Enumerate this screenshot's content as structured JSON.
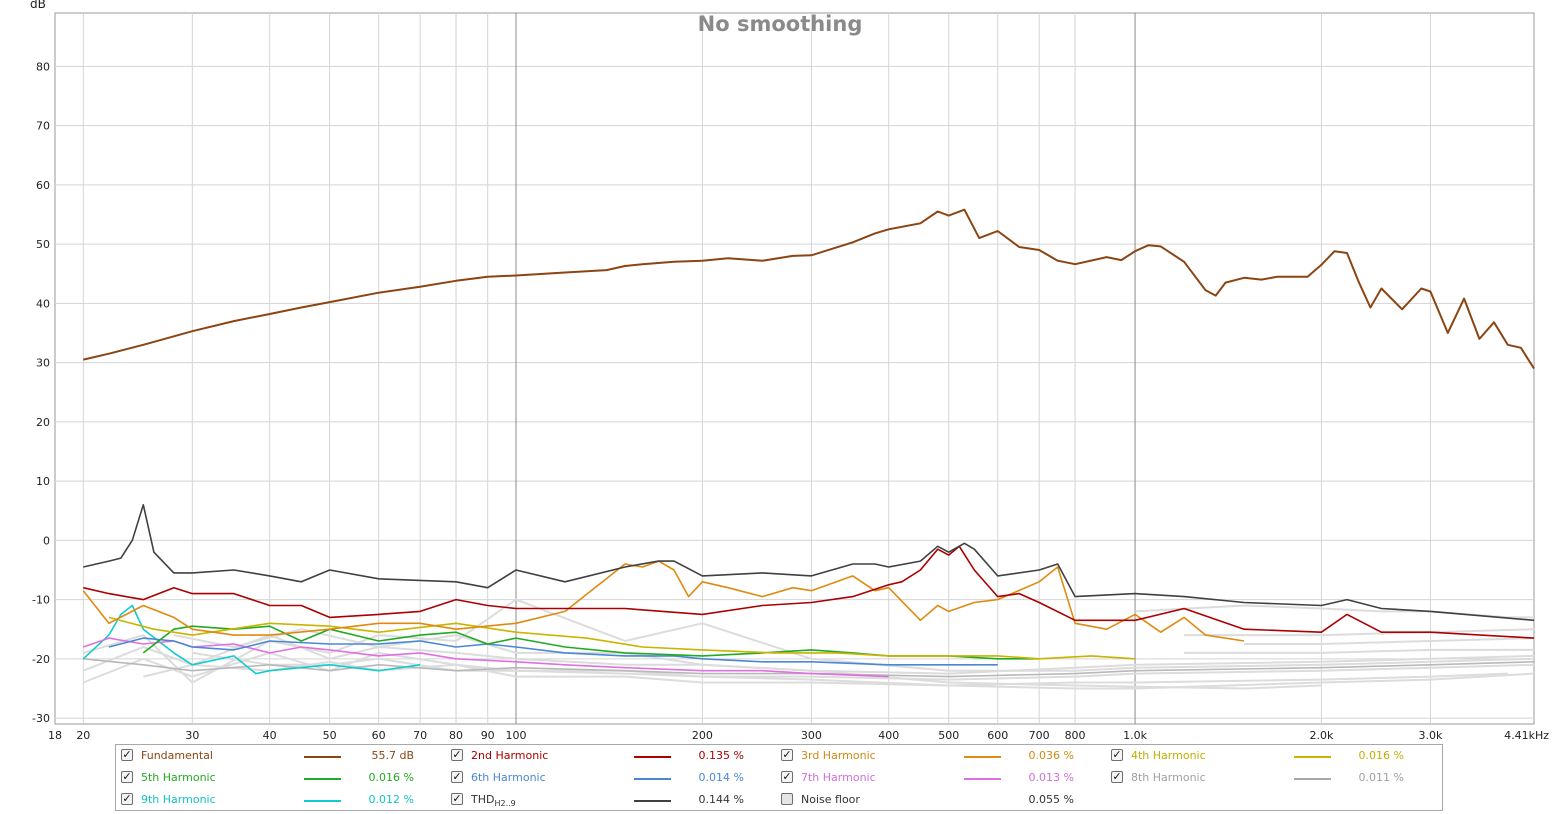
{
  "chart_data": {
    "type": "line",
    "title": "No smoothing",
    "ylabel": "dB",
    "xlabel": "",
    "x_scale": "log",
    "xlim": [
      18,
      4410
    ],
    "ylim": [
      -31,
      89
    ],
    "grid": true,
    "y_ticks": [
      "80",
      "70",
      "60",
      "50",
      "40",
      "30",
      "20",
      "10",
      "0",
      "-10",
      "-20",
      "-30"
    ],
    "y_tick_values": [
      80,
      70,
      60,
      50,
      40,
      30,
      20,
      10,
      0,
      -10,
      -20,
      -30
    ],
    "x_ticks": [
      "18",
      "20",
      "30",
      "40",
      "50",
      "60",
      "70",
      "80",
      "90",
      "100",
      "200",
      "300",
      "400",
      "500",
      "600",
      "700",
      "800",
      "1.0k",
      "2.0k",
      "3.0k",
      "4.41kHz"
    ],
    "x_tick_values": [
      18,
      20,
      30,
      40,
      50,
      60,
      70,
      80,
      90,
      100,
      200,
      300,
      400,
      500,
      600,
      700,
      800,
      1000,
      2000,
      3000,
      4410
    ],
    "series": [
      {
        "name": "Fundamental",
        "color": "#8b4513",
        "x": [
          20,
          22,
          25,
          30,
          35,
          40,
          45,
          50,
          60,
          70,
          80,
          90,
          100,
          120,
          140,
          150,
          160,
          180,
          200,
          220,
          250,
          280,
          300,
          350,
          380,
          400,
          450,
          480,
          500,
          530,
          560,
          600,
          650,
          700,
          750,
          800,
          900,
          950,
          1000,
          1050,
          1100,
          1200,
          1300,
          1350,
          1400,
          1500,
          1600,
          1700,
          1800,
          1900,
          2000,
          2100,
          2200,
          2300,
          2400,
          2500,
          2700,
          2900,
          3000,
          3200,
          3400,
          3600,
          3800,
          4000,
          4200,
          4410
        ],
        "y": [
          30.5,
          31.5,
          33.0,
          35.3,
          37.0,
          38.2,
          39.3,
          40.2,
          41.8,
          42.8,
          43.8,
          44.5,
          44.7,
          45.2,
          45.6,
          46.3,
          46.6,
          47.0,
          47.2,
          47.6,
          47.2,
          48.0,
          48.1,
          50.3,
          51.8,
          52.5,
          53.5,
          55.5,
          54.8,
          55.8,
          51.0,
          52.2,
          49.5,
          49.0,
          47.2,
          46.6,
          47.8,
          47.3,
          48.8,
          49.8,
          49.6,
          47.0,
          42.2,
          41.3,
          43.5,
          44.3,
          44.0,
          44.5,
          44.5,
          44.5,
          46.5,
          48.8,
          48.5,
          43.5,
          39.3,
          42.5,
          39.0,
          42.5,
          42.0,
          35.0,
          40.8,
          34.0,
          36.8,
          33.0,
          32.5,
          29.0
        ]
      },
      {
        "name": "2nd Harmonic",
        "color": "#aa0000",
        "x": [
          20,
          22,
          25,
          28,
          30,
          35,
          40,
          45,
          50,
          60,
          70,
          80,
          90,
          100,
          120,
          150,
          200,
          250,
          300,
          350,
          400,
          420,
          450,
          480,
          500,
          520,
          550,
          600,
          650,
          700,
          800,
          1000,
          1200,
          1500,
          2000,
          2200,
          2500,
          3000,
          4410
        ],
        "y": [
          -8.0,
          -9.0,
          -10.0,
          -8.0,
          -9.0,
          -9.0,
          -11.0,
          -11.0,
          -13.0,
          -12.5,
          -12.0,
          -10.0,
          -11.0,
          -11.5,
          -11.5,
          -11.5,
          -12.5,
          -11.0,
          -10.5,
          -9.5,
          -7.5,
          -7.0,
          -5.0,
          -1.5,
          -2.5,
          -1.0,
          -5.0,
          -9.5,
          -9.0,
          -10.5,
          -13.5,
          -13.5,
          -11.5,
          -15.0,
          -15.5,
          -12.5,
          -15.5,
          -15.5,
          -16.5
        ]
      },
      {
        "name": "3rd Harmonic",
        "color": "#e08a10",
        "x": [
          20,
          22,
          25,
          28,
          30,
          35,
          40,
          50,
          60,
          70,
          80,
          100,
          120,
          150,
          160,
          170,
          180,
          190,
          200,
          220,
          250,
          280,
          300,
          350,
          380,
          400,
          450,
          480,
          500,
          550,
          600,
          700,
          750,
          800,
          900,
          1000,
          1100,
          1200,
          1300,
          1500
        ],
        "y": [
          -8.5,
          -14.0,
          -11.0,
          -13.0,
          -15.0,
          -16.0,
          -16.0,
          -15.0,
          -14.0,
          -14.0,
          -15.0,
          -14.0,
          -12.0,
          -4.0,
          -4.5,
          -3.5,
          -5.0,
          -9.5,
          -7.0,
          -8.0,
          -9.5,
          -8.0,
          -8.5,
          -6.0,
          -8.5,
          -8.0,
          -13.5,
          -11.0,
          -12.0,
          -10.5,
          -10.0,
          -7.0,
          -4.5,
          -14.0,
          -15.0,
          -12.5,
          -15.5,
          -13.0,
          -16.0,
          -17.0
        ]
      },
      {
        "name": "4th Harmonic",
        "color": "#c9b400",
        "x": [
          22,
          26,
          30,
          40,
          50,
          60,
          80,
          100,
          130,
          160,
          200,
          260,
          330,
          400,
          500,
          600,
          700,
          850,
          1000
        ],
        "y": [
          -13.0,
          -15.0,
          -16.0,
          -14.0,
          -14.5,
          -15.5,
          -14.0,
          -15.5,
          -16.5,
          -18.0,
          -18.5,
          -19.0,
          -19.0,
          -19.5,
          -19.5,
          -19.5,
          -20.0,
          -19.5,
          -20.0
        ]
      },
      {
        "name": "5th Harmonic",
        "color": "#22aa22",
        "x": [
          25,
          28,
          30,
          35,
          40,
          45,
          50,
          60,
          70,
          80,
          90,
          100,
          120,
          150,
          200,
          250,
          300,
          350,
          400,
          500,
          600,
          700
        ],
        "y": [
          -19.0,
          -15.0,
          -14.5,
          -15.0,
          -14.5,
          -17.0,
          -15.0,
          -17.0,
          -16.0,
          -15.5,
          -17.5,
          -16.5,
          -18.0,
          -19.0,
          -19.5,
          -19.0,
          -18.5,
          -19.0,
          -19.5,
          -19.5,
          -20.0,
          -20.0
        ]
      },
      {
        "name": "6th Harmonic",
        "color": "#4a88d4",
        "x": [
          22,
          25,
          28,
          30,
          35,
          40,
          50,
          60,
          70,
          80,
          90,
          100,
          120,
          150,
          180,
          200,
          250,
          300,
          400,
          500,
          600
        ],
        "y": [
          -18.0,
          -16.5,
          -17.0,
          -18.0,
          -18.5,
          -17.0,
          -17.5,
          -17.5,
          -17.0,
          -18.0,
          -17.5,
          -18.0,
          -19.0,
          -19.5,
          -19.5,
          -20.0,
          -20.5,
          -20.5,
          -21.0,
          -21.0,
          -21.0
        ]
      },
      {
        "name": "7th Harmonic",
        "color": "#e070e0",
        "x": [
          20,
          22,
          25,
          28,
          30,
          35,
          40,
          45,
          50,
          60,
          70,
          80,
          100,
          120,
          150,
          200,
          250,
          300,
          400
        ],
        "y": [
          -18.0,
          -16.5,
          -17.5,
          -17.0,
          -18.0,
          -17.5,
          -19.0,
          -18.0,
          -18.5,
          -19.5,
          -19.0,
          -20.0,
          -20.5,
          -21.0,
          -21.5,
          -22.0,
          -22.0,
          -22.5,
          -23.0
        ]
      },
      {
        "name": "8th Harmonic",
        "color": "#b8b8b8",
        "x": [
          20,
          25,
          30,
          40,
          50,
          60,
          80,
          100,
          150,
          200,
          300,
          500,
          800,
          1000,
          2000,
          3000,
          4410
        ],
        "y": [
          -20.0,
          -21.0,
          -22.0,
          -21.0,
          -22.0,
          -21.0,
          -22.0,
          -21.5,
          -22.0,
          -22.5,
          -22.5,
          -23.0,
          -22.5,
          -22.0,
          -21.5,
          -21.0,
          -20.5
        ]
      },
      {
        "name": "9th Harmonic",
        "color": "#10cccc",
        "x": [
          20,
          22,
          23,
          24,
          25,
          28,
          30,
          35,
          38,
          40,
          50,
          60,
          70
        ],
        "y": [
          -20.0,
          -16.0,
          -12.5,
          -11.0,
          -15.0,
          -19.0,
          -21.0,
          -19.5,
          -22.5,
          -22.0,
          -21.0,
          -22.0,
          -21.0
        ]
      },
      {
        "name": "THD",
        "color": "#404040",
        "x": [
          20,
          22,
          23,
          24,
          25,
          26,
          28,
          30,
          35,
          40,
          45,
          50,
          60,
          80,
          90,
          100,
          120,
          150,
          170,
          180,
          200,
          250,
          300,
          350,
          380,
          400,
          450,
          480,
          500,
          530,
          550,
          600,
          700,
          750,
          800,
          1000,
          1200,
          1500,
          2000,
          2200,
          2500,
          3000,
          4410
        ],
        "y": [
          -4.5,
          -3.5,
          -3.0,
          0.0,
          6.0,
          -2.0,
          -5.5,
          -5.5,
          -5.0,
          -6.0,
          -7.0,
          -5.0,
          -6.5,
          -7.0,
          -8.0,
          -5.0,
          -7.0,
          -4.5,
          -3.5,
          -3.5,
          -6.0,
          -5.5,
          -6.0,
          -4.0,
          -4.0,
          -4.5,
          -3.5,
          -1.0,
          -2.0,
          -0.5,
          -1.5,
          -6.0,
          -5.0,
          -4.0,
          -9.5,
          -9.0,
          -9.5,
          -10.5,
          -11.0,
          -10.0,
          -11.5,
          -12.0,
          -13.5
        ]
      }
    ],
    "noise_floor": {
      "name": "Noise floor",
      "color": "#dcdcdc",
      "lines": [
        {
          "x": [
            20,
            25,
            30,
            40,
            50,
            60,
            80,
            100,
            150,
            200,
            300,
            500,
            800,
            1000,
            2000,
            3000,
            4410
          ],
          "y": [
            -22.0,
            -18.0,
            -21.0,
            -16.0,
            -20.0,
            -18.0,
            -19.0,
            -20.0,
            -21.0,
            -21.0,
            -22.0,
            -22.5,
            -21.5,
            -21.0,
            -20.5,
            -20.0,
            -19.5
          ]
        },
        {
          "x": [
            20,
            25,
            30,
            40,
            50,
            60,
            80,
            100,
            150,
            200,
            300,
            500,
            800,
            1000,
            2000,
            3000,
            4410
          ],
          "y": [
            -24.0,
            -20.0,
            -23.0,
            -19.0,
            -22.0,
            -19.0,
            -21.0,
            -22.0,
            -22.0,
            -23.0,
            -23.0,
            -23.5,
            -23.0,
            -22.5,
            -22.0,
            -21.5,
            -21.0
          ]
        },
        {
          "x": [
            20,
            25,
            30,
            40,
            50,
            60,
            80,
            100,
            150,
            200,
            300,
            500,
            800,
            1000,
            2000,
            3000,
            4410
          ],
          "y": [
            -19.0,
            -16.0,
            -24.0,
            -17.0,
            -19.0,
            -16.0,
            -17.0,
            -10.0,
            -17.0,
            -14.0,
            -20.0,
            -22.0,
            -22.0,
            -21.5,
            -21.0,
            -20.5,
            -20.0
          ]
        },
        {
          "x": [
            25,
            30,
            40,
            50,
            60,
            80,
            100,
            150,
            200,
            300,
            500,
            800,
            1000,
            2000,
            3000,
            4000
          ],
          "y": [
            -23.0,
            -21.0,
            -22.0,
            -20.5,
            -22.0,
            -21.0,
            -23.0,
            -23.0,
            -24.0,
            -24.0,
            -24.5,
            -24.0,
            -24.0,
            -23.5,
            -23.0,
            -22.5
          ]
        },
        {
          "x": [
            30,
            40,
            50,
            60,
            80,
            100,
            150,
            200,
            300,
            500,
            800,
            1000,
            2000,
            3000,
            4410
          ],
          "y": [
            -19.0,
            -21.0,
            -21.0,
            -20.0,
            -22.0,
            -22.0,
            -22.5,
            -23.0,
            -23.5,
            -24.5,
            -25.0,
            -25.0,
            -24.0,
            -23.5,
            -22.5
          ]
        },
        {
          "x": [
            28,
            35,
            45,
            60,
            80,
            100,
            150,
            200,
            300,
            500,
            800,
            1500,
            2000
          ],
          "y": [
            -16.0,
            -18.0,
            -15.0,
            -18.0,
            -16.0,
            -19.0,
            -19.0,
            -21.0,
            -22.0,
            -24.0,
            -24.5,
            -25.0,
            -24.5
          ]
        },
        {
          "x": [
            1000,
            1500,
            2000,
            2500,
            3000,
            4000,
            4410
          ],
          "y": [
            -12.0,
            -11.0,
            -11.5,
            -12.0,
            -12.0,
            -13.0,
            -13.0
          ]
        },
        {
          "x": [
            1200,
            2000,
            3000,
            4410
          ],
          "y": [
            -16.0,
            -16.0,
            -15.5,
            -15.0
          ]
        },
        {
          "x": [
            1500,
            2000,
            3000,
            4410
          ],
          "y": [
            -17.5,
            -17.5,
            -17.0,
            -16.5
          ]
        },
        {
          "x": [
            1200,
            2000,
            3000,
            4410
          ],
          "y": [
            -19.0,
            -19.0,
            -18.5,
            -18.5
          ]
        }
      ]
    }
  },
  "legend": [
    {
      "name": "Fundamental",
      "value": "55.7 dB",
      "color": "#8b4513",
      "text_color": "#8b4513",
      "checked": true
    },
    {
      "name": "2nd Harmonic",
      "value": "0.135 %",
      "color": "#aa0000",
      "text_color": "#aa0000",
      "checked": true
    },
    {
      "name": "3rd Harmonic",
      "value": "0.036 %",
      "color": "#e08a10",
      "text_color": "#d08a10",
      "checked": true
    },
    {
      "name": "4th Harmonic",
      "value": "0.016 %",
      "color": "#c9b400",
      "text_color": "#c0b000",
      "checked": true
    },
    {
      "name": "5th Harmonic",
      "value": "0.016 %",
      "color": "#22aa22",
      "text_color": "#22aa22",
      "checked": true
    },
    {
      "name": "6th Harmonic",
      "value": "0.014 %",
      "color": "#4a88d4",
      "text_color": "#4a88d4",
      "checked": true
    },
    {
      "name": "7th Harmonic",
      "value": "0.013 %",
      "color": "#e070e0",
      "text_color": "#d070d8",
      "checked": true
    },
    {
      "name": "8th Harmonic",
      "value": "0.011 %",
      "color": "#a8a8a8",
      "text_color": "#a0a0a0",
      "checked": true
    },
    {
      "name": "9th Harmonic",
      "value": "0.012 %",
      "color": "#10cccc",
      "text_color": "#10c4c4",
      "checked": true
    },
    {
      "name": "THD",
      "sub": "H2..9",
      "value": "0.144 %",
      "color": "#404040",
      "text_color": "#333333",
      "checked": true
    },
    {
      "name": "Noise floor",
      "value": "0.055 %",
      "color": "",
      "text_color": "#333333",
      "checked": false
    }
  ]
}
